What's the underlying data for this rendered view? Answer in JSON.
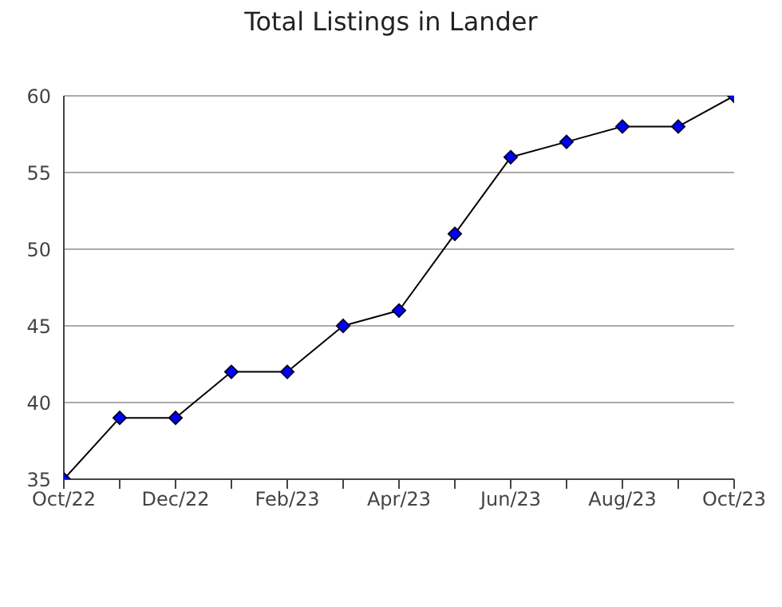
{
  "chart_data": {
    "type": "line",
    "title": "Total Listings in Lander",
    "categories": [
      "Oct/22",
      null,
      "Dec/22",
      null,
      "Feb/23",
      null,
      "Apr/23",
      null,
      "Jun/23",
      null,
      "Aug/23",
      null,
      "Oct/23"
    ],
    "series": [
      {
        "color": "#0000ff",
        "values": [
          35,
          39,
          39,
          42,
          42,
          45,
          46,
          51,
          56,
          57,
          58,
          58,
          60
        ]
      }
    ],
    "ylim": [
      35,
      60
    ],
    "yticks": [
      35,
      40,
      45,
      50,
      55,
      60
    ],
    "grid": "y",
    "marker": "diamond",
    "line_style": "solid",
    "legend": false
  }
}
